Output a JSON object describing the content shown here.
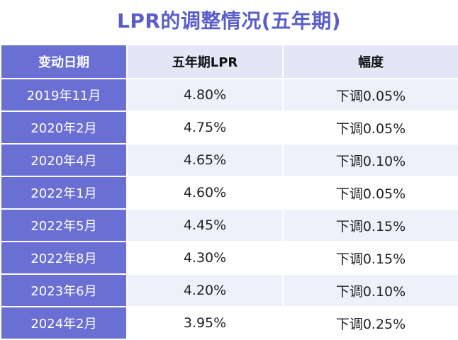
{
  "title": "LPR的调整情况(五年期)",
  "headers": [
    "变动日期",
    "五年期LPR",
    "幅度"
  ],
  "rows": [
    [
      "2019年11月",
      "4.80%",
      "下调0.05%"
    ],
    [
      "2020年2月",
      "4.75%",
      "下调0.05%"
    ],
    [
      "2020年4月",
      "4.65%",
      "下调0.10%"
    ],
    [
      "2022年1月",
      "4.60%",
      "下调0.05%"
    ],
    [
      "2022年5月",
      "4.45%",
      "下调0.15%"
    ],
    [
      "2022年8月",
      "4.30%",
      "下调0.15%"
    ],
    [
      "2023年6月",
      "4.20%",
      "下调0.10%"
    ],
    [
      "2024年2月",
      "3.95%",
      "下调0.25%"
    ]
  ],
  "colors": {
    "accent": "#6a6fd4",
    "title": "#5a5fc8",
    "row_stripe": "#eef0fa",
    "header_light": "#e4e6f6"
  }
}
